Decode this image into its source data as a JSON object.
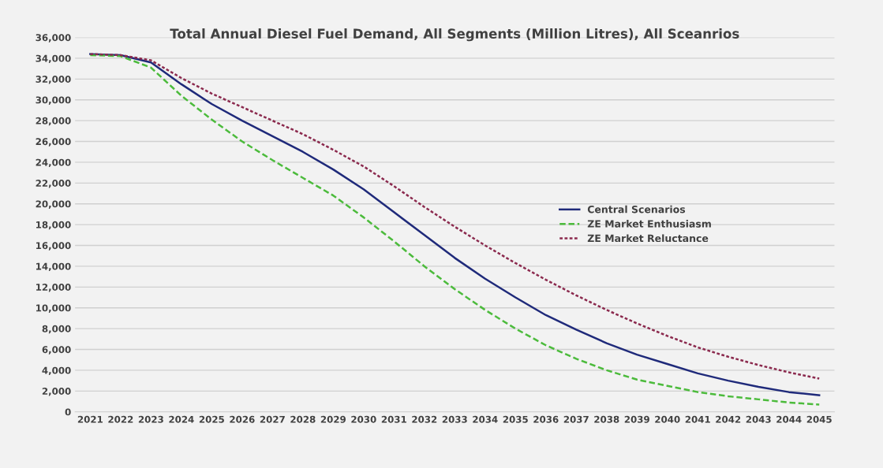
{
  "chart_data": {
    "type": "line",
    "title": "Total Annual Diesel Fuel Demand, All Segments (Million Litres), All Sceanrios",
    "categories": [
      "2021",
      "2022",
      "2023",
      "2024",
      "2025",
      "2026",
      "2027",
      "2028",
      "2029",
      "2030",
      "2031",
      "2032",
      "2033",
      "2034",
      "2035",
      "2036",
      "2037",
      "2038",
      "2039",
      "2040",
      "2041",
      "2042",
      "2043",
      "2044",
      "2045"
    ],
    "series": [
      {
        "name": "Central Scenarios",
        "color": "#1f2a7a",
        "line_style": "solid",
        "values": [
          34400,
          34300,
          33600,
          31500,
          29600,
          28000,
          26500,
          25000,
          23300,
          21400,
          19200,
          17000,
          14800,
          12800,
          11000,
          9300,
          7900,
          6600,
          5500,
          4600,
          3700,
          3000,
          2400,
          1900,
          1600
        ]
      },
      {
        "name": "ZE Market Enthusiasm",
        "color": "#4cbb3c",
        "line_style": "dashed",
        "values": [
          34300,
          34200,
          33100,
          30400,
          28100,
          26000,
          24200,
          22500,
          20800,
          18700,
          16400,
          14000,
          11800,
          9800,
          8000,
          6400,
          5100,
          4000,
          3100,
          2500,
          1900,
          1500,
          1200,
          900,
          700
        ]
      },
      {
        "name": "ZE Market Reluctance",
        "color": "#8b2a4e",
        "line_style": "dotted",
        "values": [
          34400,
          34300,
          33800,
          32100,
          30600,
          29300,
          28000,
          26700,
          25200,
          23600,
          21700,
          19700,
          17800,
          16000,
          14300,
          12700,
          11200,
          9800,
          8500,
          7300,
          6200,
          5300,
          4500,
          3800,
          3200
        ]
      }
    ],
    "ylim": [
      0,
      36000
    ],
    "yticks": [
      {
        "value": 0,
        "label": "0"
      },
      {
        "value": 2000,
        "label": "2,000"
      },
      {
        "value": 4000,
        "label": "4,000"
      },
      {
        "value": 6000,
        "label": "6,000"
      },
      {
        "value": 8000,
        "label": "8,000"
      },
      {
        "value": 10000,
        "label": "10,000"
      },
      {
        "value": 12000,
        "label": "12,000"
      },
      {
        "value": 14000,
        "label": "14,000"
      },
      {
        "value": 16000,
        "label": "16,000"
      },
      {
        "value": 18000,
        "label": "18,000"
      },
      {
        "value": 20000,
        "label": "20,000"
      },
      {
        "value": 22000,
        "label": "22,000"
      },
      {
        "value": 24000,
        "label": "24,000"
      },
      {
        "value": 26000,
        "label": "26,000"
      },
      {
        "value": 28000,
        "label": "28,000"
      },
      {
        "value": 30000,
        "label": "30,000"
      },
      {
        "value": 32000,
        "label": "32,000"
      },
      {
        "value": 34000,
        "label": "34,000"
      },
      {
        "value": 36000,
        "label": "36,000"
      }
    ],
    "grid": "y",
    "legend": "center right",
    "marker": "none"
  }
}
